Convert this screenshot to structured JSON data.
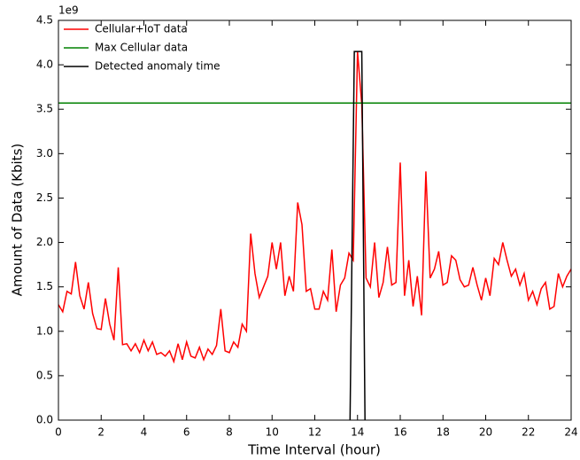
{
  "chart_data": {
    "type": "line",
    "xlabel": "Time Interval (hour)",
    "ylabel": "Amount of Data (Kbits)",
    "y_offset_label": "1e9",
    "xlim": [
      0,
      24
    ],
    "xticks": [
      0,
      2,
      4,
      6,
      8,
      10,
      12,
      14,
      16,
      18,
      20,
      22,
      24
    ],
    "ylim": [
      0,
      4.5
    ],
    "yticks": [
      {
        "value": 0,
        "label": "0.0"
      },
      0.5,
      {
        "value": 1,
        "label": "1.0"
      },
      1.5,
      {
        "value": 2,
        "label": "2.0"
      },
      2.5,
      {
        "value": 3,
        "label": "3.0"
      },
      3.5,
      {
        "value": 4,
        "label": "4.0"
      },
      4.5
    ],
    "legend": "upper left",
    "series": [
      {
        "name": "Cellular+IoT data",
        "color": "#ff0000",
        "x": [
          0,
          0.2,
          0.4,
          0.6,
          0.8,
          1,
          1.2,
          1.4,
          1.6,
          1.8,
          2,
          2.2,
          2.4,
          2.6,
          2.8,
          3,
          3.2,
          3.4,
          3.6,
          3.8,
          4,
          4.2,
          4.4,
          4.6,
          4.8,
          5,
          5.2,
          5.4,
          5.6,
          5.8,
          6,
          6.2,
          6.4,
          6.6,
          6.8,
          7,
          7.2,
          7.4,
          7.6,
          7.8,
          8,
          8.2,
          8.4,
          8.6,
          8.8,
          9,
          9.2,
          9.4,
          9.6,
          9.8,
          10,
          10.2,
          10.4,
          10.6,
          10.8,
          11,
          11.2,
          11.4,
          11.6,
          11.8,
          12,
          12.2,
          12.4,
          12.6,
          12.8,
          13,
          13.2,
          13.4,
          13.6,
          13.8,
          14,
          14.2,
          14.4,
          14.6,
          14.8,
          15,
          15.2,
          15.4,
          15.6,
          15.8,
          16,
          16.2,
          16.4,
          16.6,
          16.8,
          17,
          17.2,
          17.4,
          17.6,
          17.8,
          18,
          18.2,
          18.4,
          18.6,
          18.8,
          19,
          19.2,
          19.4,
          19.6,
          19.8,
          20,
          20.2,
          20.4,
          20.6,
          20.8,
          21,
          21.2,
          21.4,
          21.6,
          21.8,
          22,
          22.2,
          22.4,
          22.6,
          22.8,
          23,
          23.2,
          23.4,
          23.6,
          23.8,
          24
        ],
        "values": [
          1.3,
          1.22,
          1.45,
          1.42,
          1.78,
          1.4,
          1.25,
          1.55,
          1.2,
          1.03,
          1.02,
          1.37,
          1.08,
          0.9,
          1.72,
          0.85,
          0.86,
          0.78,
          0.86,
          0.76,
          0.9,
          0.78,
          0.88,
          0.74,
          0.76,
          0.72,
          0.78,
          0.66,
          0.86,
          0.68,
          0.88,
          0.72,
          0.7,
          0.82,
          0.68,
          0.8,
          0.74,
          0.84,
          1.25,
          0.78,
          0.76,
          0.88,
          0.82,
          1.08,
          1.0,
          2.1,
          1.65,
          1.38,
          1.5,
          1.62,
          2.0,
          1.7,
          2.0,
          1.4,
          1.62,
          1.45,
          2.45,
          2.2,
          1.45,
          1.48,
          1.25,
          1.25,
          1.45,
          1.35,
          1.92,
          1.22,
          1.52,
          1.6,
          1.88,
          1.8,
          4.15,
          3.55,
          1.6,
          1.5,
          2.0,
          1.38,
          1.55,
          1.95,
          1.52,
          1.55,
          2.9,
          1.4,
          1.8,
          1.28,
          1.62,
          1.18,
          2.8,
          1.6,
          1.7,
          1.9,
          1.52,
          1.55,
          1.85,
          1.8,
          1.58,
          1.5,
          1.52,
          1.72,
          1.52,
          1.35,
          1.6,
          1.4,
          1.82,
          1.75,
          2.0,
          1.8,
          1.62,
          1.7,
          1.52,
          1.65,
          1.35,
          1.45,
          1.3,
          1.48,
          1.55,
          1.25,
          1.28,
          1.65,
          1.5,
          1.62,
          1.7
        ]
      },
      {
        "name": "Max Cellular data",
        "color": "#008000",
        "x": [
          0,
          24
        ],
        "values": [
          3.57,
          3.57
        ]
      },
      {
        "name": "Detected anomaly time",
        "color": "#000000",
        "x": [
          13.65,
          13.85,
          14.2,
          14.35
        ],
        "values": [
          0,
          4.15,
          4.15,
          0
        ]
      }
    ]
  }
}
